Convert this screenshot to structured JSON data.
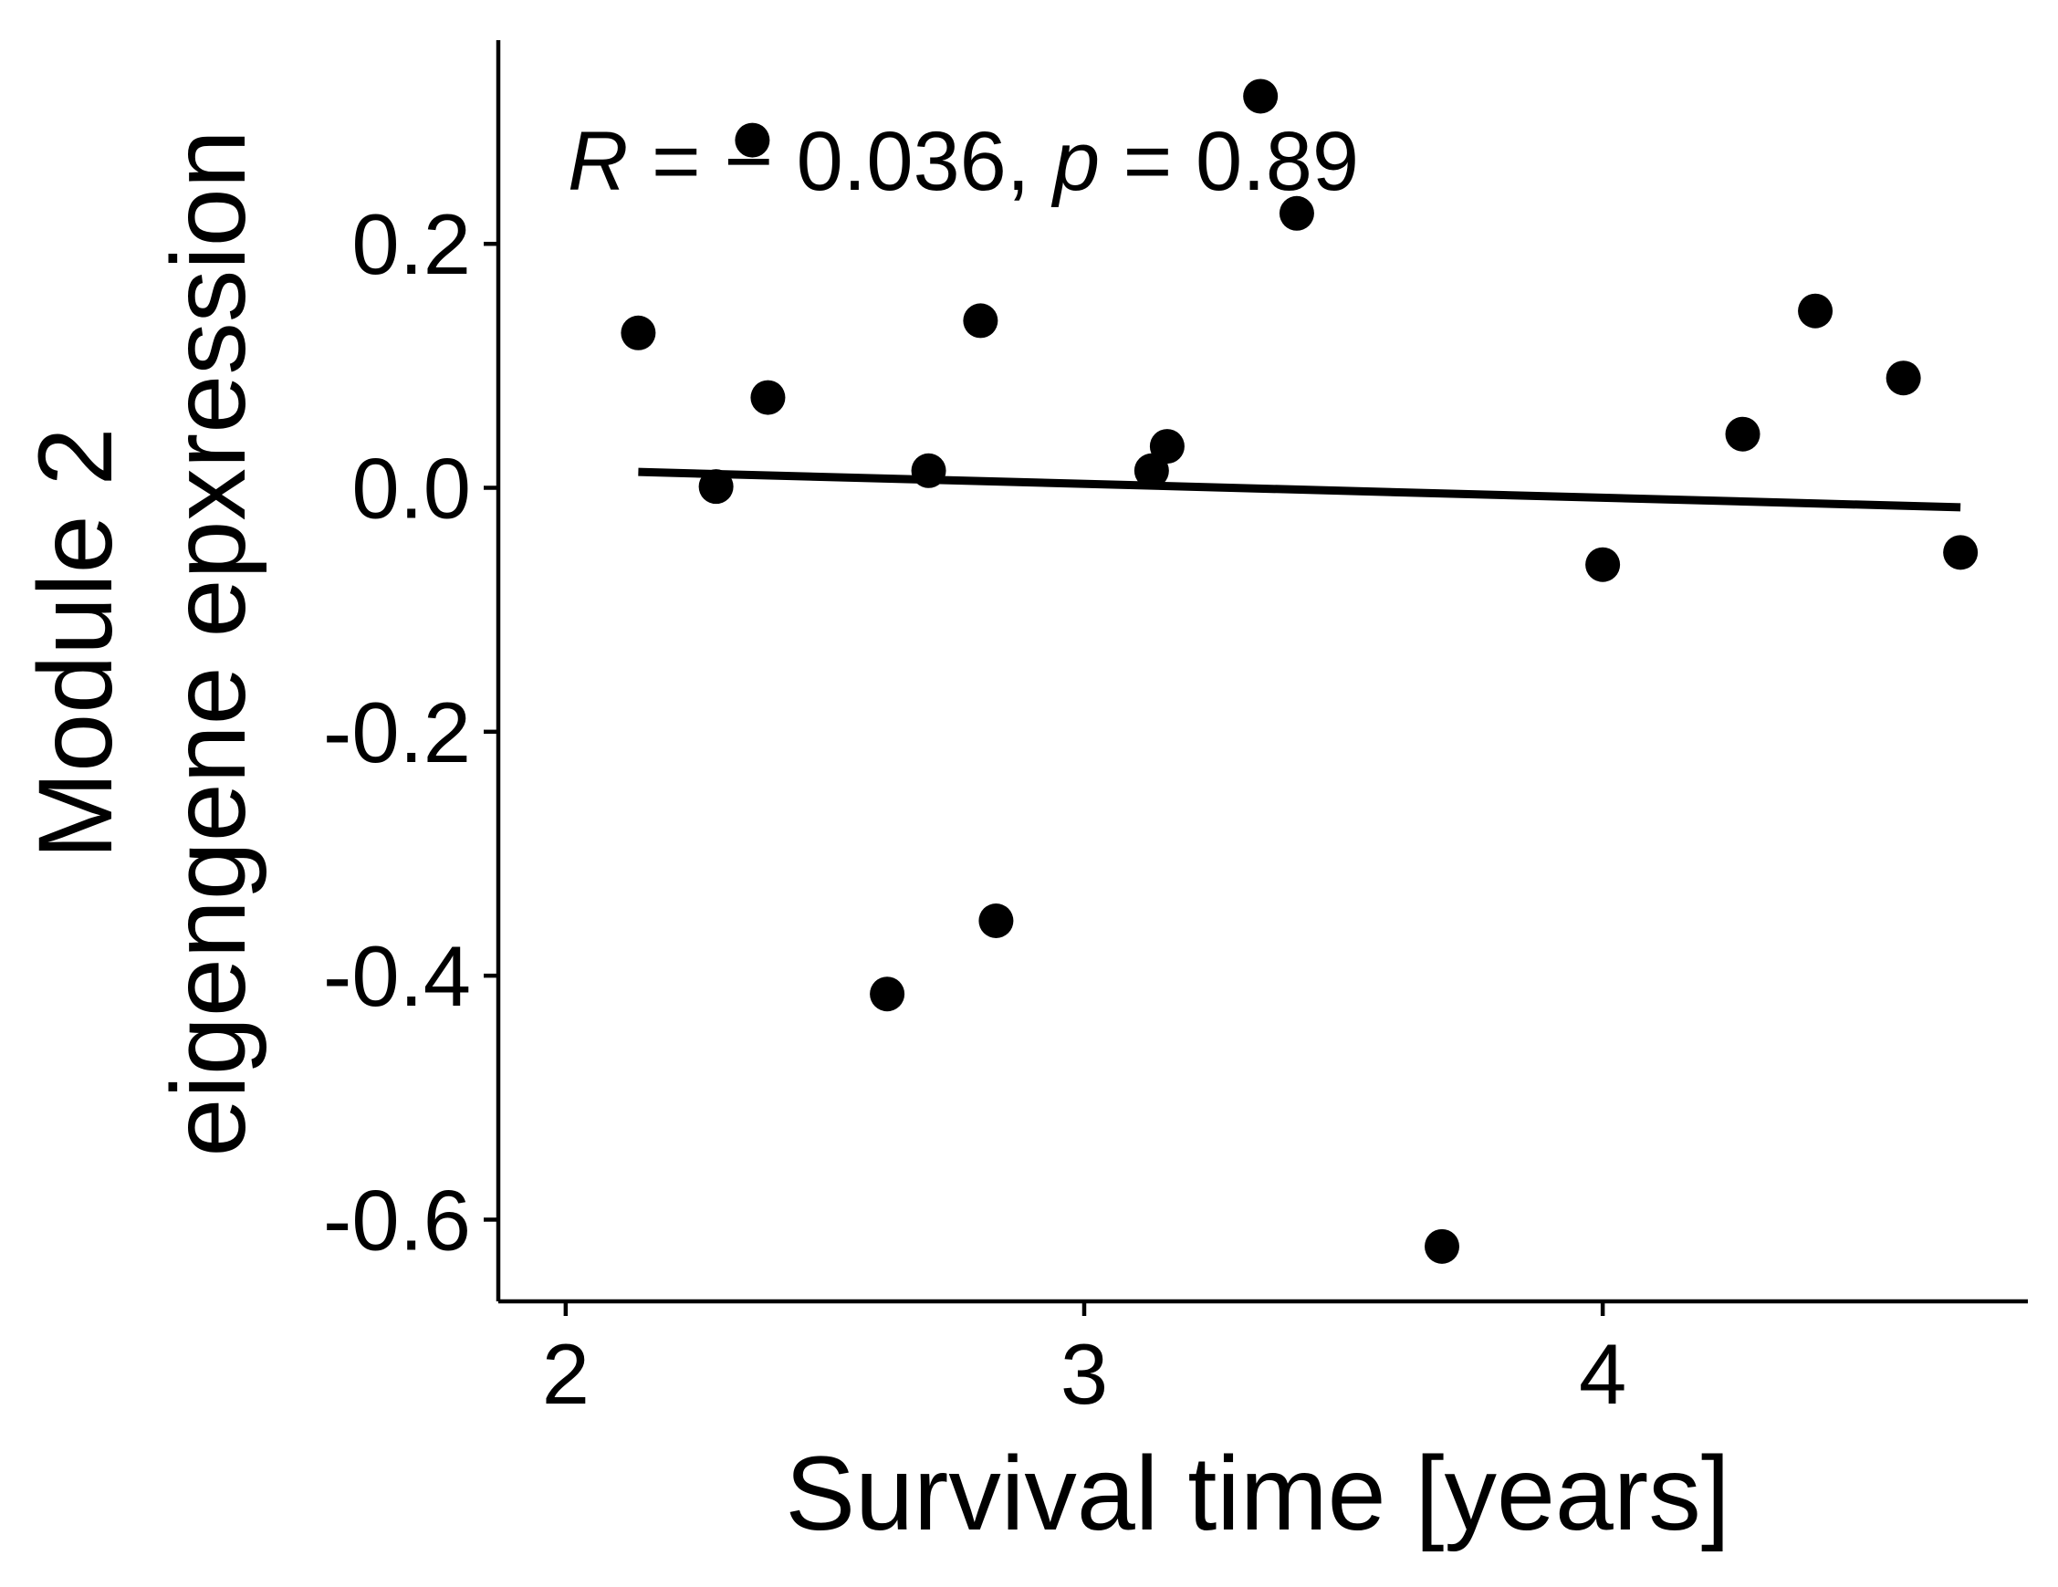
{
  "chart_data": {
    "type": "scatter",
    "xlabel": "Survival time [years]",
    "ylabel_lines": [
      "Module 2",
      "eigengene epxression"
    ],
    "xlim": [
      1.87,
      4.82
    ],
    "ylim": [
      -0.667,
      0.367
    ],
    "xticks": [
      2,
      3,
      4
    ],
    "xtick_labels": [
      "2",
      "3",
      "4"
    ],
    "yticks": [
      -0.6,
      -0.4,
      -0.2,
      0.0,
      0.2
    ],
    "ytick_labels": [
      "-0.6",
      "-0.4",
      "-0.2",
      "0.0",
      "0.2"
    ],
    "grid": false,
    "legend": "none",
    "points": [
      {
        "x": 2.14,
        "y": 0.127
      },
      {
        "x": 2.29,
        "y": 0.001
      },
      {
        "x": 2.36,
        "y": 0.285
      },
      {
        "x": 2.39,
        "y": 0.074
      },
      {
        "x": 2.62,
        "y": -0.415
      },
      {
        "x": 2.7,
        "y": 0.014
      },
      {
        "x": 2.8,
        "y": 0.137
      },
      {
        "x": 2.83,
        "y": -0.355
      },
      {
        "x": 3.13,
        "y": 0.014
      },
      {
        "x": 3.16,
        "y": 0.034
      },
      {
        "x": 3.34,
        "y": 0.321
      },
      {
        "x": 3.41,
        "y": 0.225
      },
      {
        "x": 3.69,
        "y": -0.622
      },
      {
        "x": 4.0,
        "y": -0.063
      },
      {
        "x": 4.27,
        "y": 0.044
      },
      {
        "x": 4.41,
        "y": 0.145
      },
      {
        "x": 4.58,
        "y": 0.09
      },
      {
        "x": 4.69,
        "y": -0.053
      }
    ],
    "fit_line": {
      "x": [
        2.14,
        4.69
      ],
      "y": [
        0.013,
        -0.016
      ]
    },
    "annotation": {
      "r_label": "R",
      "eq1": " = ",
      "r_value": "− 0.036, ",
      "p_label": "p",
      "eq2": " = ",
      "p_value": "0.89"
    },
    "colors": {
      "points": "#000000",
      "line": "#000000"
    }
  }
}
